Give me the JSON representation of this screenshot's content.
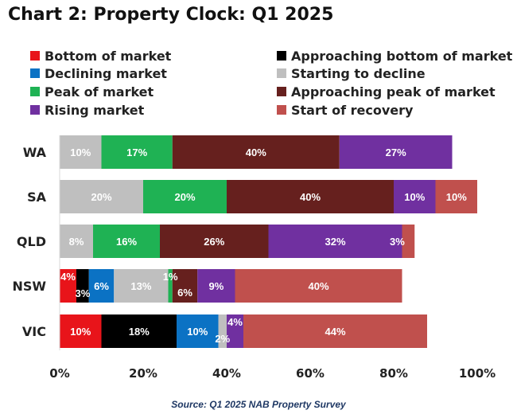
{
  "title": "Chart 2: Property Clock: Q1 2025",
  "source": "Source: Q1 2025 NAB Property Survey",
  "chart_data": {
    "type": "bar",
    "orientation": "horizontal",
    "stacked": true,
    "title": "Chart 2: Property Clock: Q1 2025",
    "xlim": [
      0,
      100
    ],
    "x_ticks": [
      "0%",
      "20%",
      "40%",
      "60%",
      "80%",
      "100%"
    ],
    "grid": false,
    "legend_position": "top",
    "categories": [
      "WA",
      "SA",
      "QLD",
      "NSW",
      "VIC"
    ],
    "series": [
      {
        "name": "Bottom of market",
        "color": "#e8141a",
        "values": [
          0,
          0,
          0,
          4,
          10
        ]
      },
      {
        "name": "Approaching bottom of market",
        "color": "#000000",
        "values": [
          0,
          0,
          0,
          3,
          18
        ]
      },
      {
        "name": "Declining market",
        "color": "#0b72c4",
        "values": [
          0,
          0,
          0,
          6,
          10
        ]
      },
      {
        "name": "Starting to decline",
        "color": "#bfbfbf",
        "values": [
          10,
          20,
          8,
          13,
          2
        ]
      },
      {
        "name": "Peak of market",
        "color": "#1fb254",
        "values": [
          17,
          20,
          16,
          1,
          0
        ]
      },
      {
        "name": "Approaching peak of market",
        "color": "#66201e",
        "values": [
          40,
          40,
          26,
          6,
          0
        ]
      },
      {
        "name": "Rising market",
        "color": "#7030a0",
        "values": [
          27,
          10,
          32,
          9,
          4
        ]
      },
      {
        "name": "Start of recovery",
        "color": "#c0504d",
        "values": [
          0,
          10,
          3,
          40,
          44
        ]
      }
    ],
    "bar_labels": [
      [
        "",
        "",
        "",
        "10%",
        "17%",
        "40%",
        "27%",
        ""
      ],
      [
        "",
        "",
        "",
        "20%",
        "20%",
        "40%",
        "10%",
        "10%"
      ],
      [
        "",
        "",
        "",
        "8%",
        "16%",
        "26%",
        "32%",
        "3%"
      ],
      [
        "4%",
        "3%",
        "6%",
        "13%",
        "1%",
        "6%",
        "9%",
        "40%"
      ],
      [
        "10%",
        "18%",
        "10%",
        "2%",
        "",
        "",
        "4%",
        "44%"
      ]
    ]
  }
}
